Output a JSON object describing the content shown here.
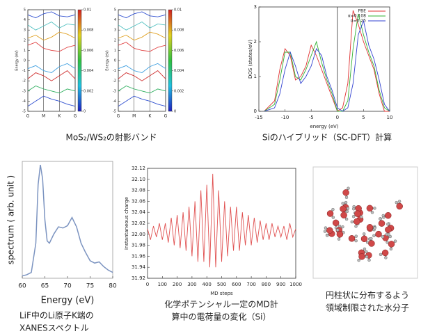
{
  "chart_data": [
    {
      "type": "line",
      "ylabel": "Energy (eV)",
      "x": [
        0,
        0.5,
        1,
        1.5,
        2,
        2.5,
        3
      ],
      "xlim": [
        0,
        3
      ],
      "xticks": [
        {
          "value": 0,
          "label": "G"
        },
        {
          "value": 1,
          "label": "M"
        },
        {
          "value": 2,
          "label": "K"
        },
        {
          "value": 3,
          "label": "G"
        }
      ],
      "ylim": [
        -5,
        5
      ],
      "yticks": [
        -5,
        -4,
        -3,
        -2,
        -1,
        0,
        1,
        2,
        3,
        4,
        5
      ],
      "grid": true,
      "clim": [
        0,
        0.01
      ],
      "cticks": [
        0,
        0.002,
        0.004,
        0.006,
        0.008,
        0.01
      ],
      "series": [
        {
          "color": "#3050d0",
          "values": [
            -4.5,
            -4,
            -3.5,
            -3.8,
            -4,
            -4.3,
            -4.5
          ]
        },
        {
          "color": "#30b060",
          "values": [
            -3,
            -2.5,
            -2.8,
            -3,
            -3.2,
            -2.8,
            -3
          ]
        },
        {
          "color": "#d03030",
          "values": [
            -1.8,
            -1.2,
            -1.5,
            -2,
            -1.5,
            -1,
            -1.8
          ]
        },
        {
          "color": "#40a0e0",
          "values": [
            -0.8,
            -0.5,
            -1,
            -1.2,
            -0.6,
            -0.3,
            -0.8
          ]
        },
        {
          "color": "#e04040",
          "values": [
            1.5,
            1.8,
            1.2,
            1,
            0.9,
            1.3,
            1.5
          ]
        },
        {
          "color": "#e0a020",
          "values": [
            2.2,
            2.5,
            2,
            2.3,
            2.8,
            2.6,
            2.2
          ]
        },
        {
          "color": "#50c0c0",
          "values": [
            3.5,
            3,
            3.4,
            3.8,
            3.2,
            3.6,
            3.5
          ]
        },
        {
          "color": "#3050d0",
          "values": [
            4.5,
            4.2,
            4.6,
            4.8,
            4.4,
            4.3,
            4.5
          ]
        }
      ]
    },
    {
      "type": "line",
      "ylabel": "Energy (eV)",
      "x": [
        0,
        0.5,
        1,
        1.5,
        2,
        2.5,
        3
      ],
      "xlim": [
        0,
        3
      ],
      "xticks": [
        {
          "value": 0,
          "label": "G"
        },
        {
          "value": 1,
          "label": "M"
        },
        {
          "value": 2,
          "label": "K"
        },
        {
          "value": 3,
          "label": "G"
        }
      ],
      "ylim": [
        -5,
        5
      ],
      "yticks": [
        -5,
        -4,
        -3,
        -2,
        -1,
        0,
        1,
        2,
        3,
        4,
        5
      ],
      "grid": true,
      "clim": [
        0,
        0.01
      ],
      "cticks": [
        0,
        0.002,
        0.004,
        0.006,
        0.008,
        0.01
      ],
      "series": [
        {
          "color": "#3050d0",
          "values": [
            -4.5,
            -4,
            -3.5,
            -3.8,
            -4,
            -4.3,
            -4.5
          ]
        },
        {
          "color": "#30b060",
          "values": [
            -3,
            -2.5,
            -2.8,
            -3,
            -3.2,
            -2.8,
            -3
          ]
        },
        {
          "color": "#d03030",
          "values": [
            -1.8,
            -1.2,
            -1.5,
            -2,
            -1.5,
            -1,
            -1.8
          ]
        },
        {
          "color": "#40a0e0",
          "values": [
            -0.8,
            -0.5,
            -1,
            -1.2,
            -0.6,
            -0.3,
            -0.8
          ]
        },
        {
          "color": "#e04040",
          "values": [
            1.5,
            1.8,
            1.2,
            1,
            0.9,
            1.3,
            1.5
          ]
        },
        {
          "color": "#e0a020",
          "values": [
            2.2,
            2.5,
            2,
            2.3,
            2.8,
            2.6,
            2.2
          ]
        },
        {
          "color": "#50c0c0",
          "values": [
            3.5,
            3,
            3.4,
            3.8,
            3.2,
            3.6,
            3.5
          ]
        },
        {
          "color": "#3050d0",
          "values": [
            4.5,
            4.2,
            4.6,
            4.8,
            4.4,
            4.3,
            4.5
          ]
        }
      ]
    },
    {
      "type": "line",
      "xlabel": "energy (eV)",
      "ylabel": "DOS (states/eV)",
      "x": [
        -14,
        -12,
        -11,
        -10,
        -9,
        -8,
        -7,
        -6,
        -5,
        -4,
        -3,
        -2,
        -1,
        0,
        1,
        2,
        3,
        4,
        5,
        6,
        7,
        8,
        9,
        10
      ],
      "xlim": [
        -15,
        10
      ],
      "xticks": [
        -15,
        -10,
        -5,
        0,
        5,
        10
      ],
      "ylim": [
        0,
        3
      ],
      "yticks": [
        0,
        1,
        2,
        3
      ],
      "legend": "top-right",
      "series": [
        {
          "name": "PBE",
          "color": "#e03030",
          "values": [
            0,
            0.3,
            1.2,
            1.8,
            1.6,
            0.9,
            1.0,
            1.3,
            1.9,
            1.6,
            1.2,
            0.8,
            0.4,
            0,
            0.1,
            0.8,
            2.9,
            2.5,
            2.0,
            1.6,
            1.2,
            0.5,
            0,
            0
          ]
        },
        {
          "name": "α=0.108",
          "color": "#30b030",
          "values": [
            0,
            0.2,
            0.9,
            1.7,
            1.7,
            1.0,
            0.9,
            1.2,
            1.6,
            2.0,
            1.4,
            0.9,
            0.5,
            0,
            0,
            0.3,
            1.8,
            2.8,
            2.2,
            1.7,
            1.3,
            0.6,
            0.1,
            0
          ]
        },
        {
          "name": "α=0.25",
          "color": "#3040d0",
          "values": [
            0,
            0.1,
            0.5,
            1.2,
            1.7,
            1.3,
            0.8,
            1.0,
            1.3,
            1.8,
            1.6,
            1.0,
            0.6,
            0.1,
            0,
            0.1,
            0.8,
            2.2,
            2.6,
            1.9,
            1.5,
            0.9,
            0.2,
            0
          ]
        }
      ]
    },
    {
      "type": "line",
      "xlabel": "Energy (eV)",
      "ylabel": "spectrum ( arb. unit )",
      "x": [
        60,
        61,
        62,
        63,
        63.5,
        64,
        64.5,
        65,
        65.5,
        66,
        67,
        68,
        69,
        70,
        71,
        72,
        73,
        74,
        75,
        76,
        77,
        78,
        79,
        80
      ],
      "xlim": [
        60,
        80
      ],
      "xticks": [
        60,
        65,
        70,
        75,
        80
      ],
      "ylim": [
        0,
        1
      ],
      "series": [
        {
          "color": "#7b93c0",
          "values": [
            0.02,
            0.03,
            0.05,
            0.3,
            0.8,
            0.97,
            0.85,
            0.5,
            0.32,
            0.3,
            0.38,
            0.44,
            0.43,
            0.45,
            0.52,
            0.44,
            0.3,
            0.22,
            0.15,
            0.13,
            0.14,
            0.1,
            0.07,
            0.05
          ]
        }
      ]
    },
    {
      "type": "line",
      "xlabel": "MD steps",
      "ylabel": "instantaneous charge",
      "x": [
        0,
        20,
        40,
        60,
        80,
        100,
        120,
        140,
        160,
        180,
        200,
        220,
        240,
        260,
        280,
        300,
        320,
        340,
        360,
        380,
        400,
        420,
        440,
        460,
        480,
        500,
        520,
        540,
        560,
        580,
        600,
        620,
        640,
        660,
        680,
        700,
        720,
        740,
        760,
        780,
        800,
        820,
        840,
        860,
        880,
        900,
        920,
        940,
        960,
        980,
        1000
      ],
      "xlim": [
        0,
        1000
      ],
      "xticks": [
        0,
        100,
        200,
        300,
        400,
        500,
        600,
        700,
        800,
        900,
        1000
      ],
      "ylim": [
        31.92,
        32.12
      ],
      "yticks": [
        31.92,
        31.94,
        31.96,
        31.98,
        {
          "value": 32,
          "label": "32.00"
        },
        32.02,
        32.04,
        32.06,
        32.08,
        {
          "value": 32.1,
          "label": "32.10"
        },
        32.12
      ],
      "series": [
        {
          "color": "#e05050",
          "values": [
            32.01,
            31.99,
            32.015,
            31.995,
            32.02,
            31.99,
            32.02,
            31.985,
            32.03,
            31.98,
            32.035,
            31.975,
            32.04,
            31.97,
            32.05,
            31.96,
            32.06,
            31.95,
            32.08,
            31.95,
            32.09,
            31.94,
            32.11,
            31.94,
            32.08,
            31.95,
            32.06,
            31.96,
            32.05,
            31.97,
            32.05,
            31.97,
            32.04,
            31.98,
            32.035,
            31.98,
            32.03,
            31.985,
            32.025,
            31.99,
            32.02,
            31.99,
            32.02,
            31.995,
            32.015,
            31.995,
            32.015,
            31.99,
            32.02,
            31.995,
            32.01
          ]
        }
      ]
    }
  ],
  "captions": [
    [
      "MoS₂/WS₂の射影バンド"
    ],
    [
      "Siのハイブリッド（SC-DFT）計算"
    ],
    [
      "LiF中のLi原子K端の",
      "XANESスペクトル"
    ],
    [
      "化学ポテンシャル一定のMD計",
      "算中の電荷量の変化（Si）"
    ],
    [
      "円柱状に分布するよう",
      "領域制限された水分子"
    ]
  ]
}
